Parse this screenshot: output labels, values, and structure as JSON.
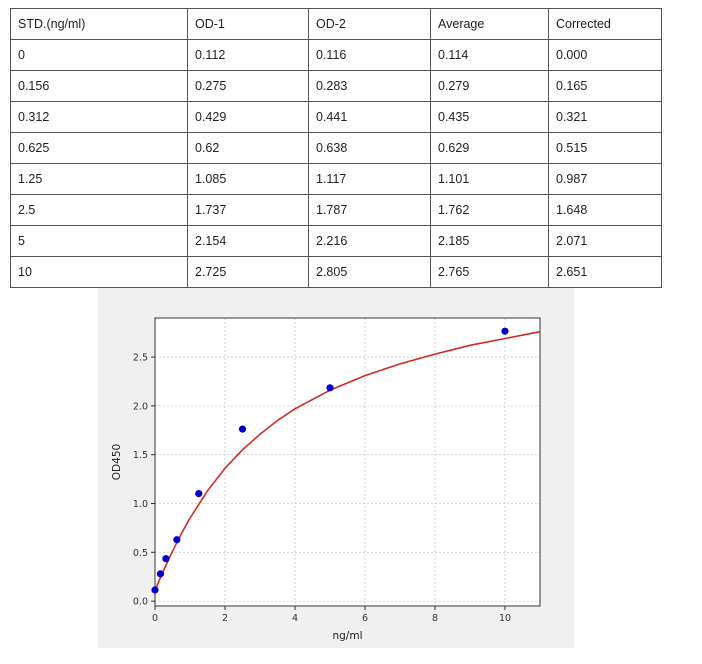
{
  "table": {
    "headers": [
      "STD.(ng/ml)",
      "OD-1",
      "OD-2",
      "Average",
      "Corrected"
    ],
    "rows": [
      [
        "0",
        "0.112",
        "0.116",
        "0.114",
        "0.000"
      ],
      [
        "0.156",
        "0.275",
        "0.283",
        "0.279",
        "0.165"
      ],
      [
        "0.312",
        "0.429",
        "0.441",
        "0.435",
        "0.321"
      ],
      [
        "0.625",
        "0.62",
        "0.638",
        "0.629",
        "0.515"
      ],
      [
        "1.25",
        "1.085",
        "1.117",
        "1.101",
        "0.987"
      ],
      [
        "2.5",
        "1.737",
        "1.787",
        "1.762",
        "1.648"
      ],
      [
        "5",
        "2.154",
        "2.216",
        "2.185",
        "2.071"
      ],
      [
        "10",
        "2.725",
        "2.805",
        "2.765",
        "2.651"
      ]
    ]
  },
  "chart_data": {
    "type": "scatter",
    "title": "",
    "xlabel": "ng/ml",
    "ylabel": "OD450",
    "xlim": [
      0,
      11
    ],
    "ylim": [
      -0.05,
      2.9
    ],
    "xticks": [
      0,
      2,
      4,
      6,
      8,
      10
    ],
    "yticks": [
      0.0,
      0.5,
      1.0,
      1.5,
      2.0,
      2.5
    ],
    "ytick_labels": [
      "0.0",
      "0.5",
      "1.0",
      "1.5",
      "2.0",
      "2.5"
    ],
    "grid": true,
    "series": [
      {
        "x": [
          0,
          0.156,
          0.312,
          0.625,
          1.25,
          2.5,
          5,
          10
        ],
        "y": [
          0.114,
          0.279,
          0.435,
          0.629,
          1.101,
          1.762,
          2.185,
          2.765
        ],
        "color": "#0000cc",
        "marker": "dot"
      }
    ],
    "fit_curve": {
      "type": "saturation",
      "color": "#d62728",
      "x": [
        0,
        0.25,
        0.5,
        0.75,
        1,
        1.5,
        2,
        2.5,
        3,
        3.5,
        4,
        5,
        6,
        7,
        8,
        9,
        10,
        11
      ],
      "y": [
        0.11,
        0.32,
        0.51,
        0.69,
        0.85,
        1.13,
        1.36,
        1.55,
        1.71,
        1.85,
        1.97,
        2.16,
        2.31,
        2.43,
        2.53,
        2.62,
        2.69,
        2.76
      ]
    }
  }
}
